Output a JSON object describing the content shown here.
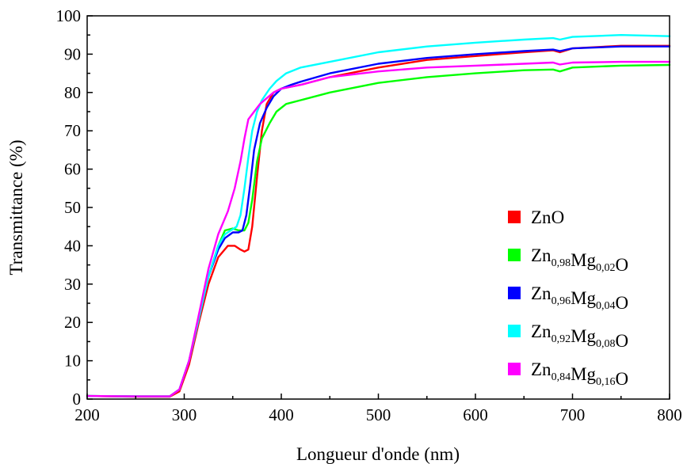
{
  "chart_data": {
    "type": "line",
    "xlabel": "Longueur d'onde (nm)",
    "ylabel": "Transmittance (%)",
    "xlim": [
      200,
      800
    ],
    "ylim": [
      0,
      100
    ],
    "x_ticks": [
      "200",
      "300",
      "400",
      "500",
      "600",
      "700",
      "800"
    ],
    "y_ticks": [
      "0",
      "10",
      "20",
      "30",
      "40",
      "50",
      "60",
      "70",
      "80",
      "90",
      "100"
    ],
    "grid": false,
    "legend_position": "right",
    "series": [
      {
        "name": "ZnO",
        "label_parts": [
          [
            "Zn",
            ""
          ],
          [
            "O",
            ""
          ]
        ],
        "color": "#ff0000",
        "points": [
          [
            200,
            0.8
          ],
          [
            250,
            0.6
          ],
          [
            285,
            0.6
          ],
          [
            295,
            2
          ],
          [
            305,
            9
          ],
          [
            315,
            20
          ],
          [
            325,
            30
          ],
          [
            335,
            37
          ],
          [
            345,
            40
          ],
          [
            352,
            40
          ],
          [
            358,
            39
          ],
          [
            362,
            38.5
          ],
          [
            366,
            39
          ],
          [
            370,
            45
          ],
          [
            375,
            58
          ],
          [
            380,
            70
          ],
          [
            385,
            77
          ],
          [
            392,
            80
          ],
          [
            400,
            81
          ],
          [
            410,
            81.5
          ],
          [
            420,
            82
          ],
          [
            450,
            84
          ],
          [
            500,
            86.5
          ],
          [
            550,
            88.5
          ],
          [
            600,
            89.5
          ],
          [
            650,
            90.5
          ],
          [
            680,
            91
          ],
          [
            687,
            90.5
          ],
          [
            700,
            91.5
          ],
          [
            750,
            92.2
          ],
          [
            800,
            92.2
          ]
        ]
      },
      {
        "name": "Zn0,98Mg0,02O",
        "label_parts": [
          [
            "Zn",
            "0,98"
          ],
          [
            "Mg",
            "0,02"
          ],
          [
            "O",
            ""
          ]
        ],
        "color": "#00ff00",
        "points": [
          [
            200,
            0.8
          ],
          [
            250,
            0.7
          ],
          [
            285,
            0.7
          ],
          [
            295,
            2.5
          ],
          [
            305,
            10
          ],
          [
            315,
            21
          ],
          [
            325,
            32
          ],
          [
            335,
            40
          ],
          [
            342,
            44
          ],
          [
            350,
            44.5
          ],
          [
            356,
            44
          ],
          [
            362,
            44
          ],
          [
            366,
            46
          ],
          [
            370,
            52
          ],
          [
            375,
            62
          ],
          [
            380,
            68
          ],
          [
            388,
            72
          ],
          [
            395,
            75
          ],
          [
            405,
            77
          ],
          [
            420,
            78
          ],
          [
            450,
            80
          ],
          [
            500,
            82.5
          ],
          [
            550,
            84
          ],
          [
            600,
            85
          ],
          [
            650,
            85.8
          ],
          [
            680,
            86
          ],
          [
            687,
            85.5
          ],
          [
            700,
            86.5
          ],
          [
            750,
            87
          ],
          [
            800,
            87.2
          ]
        ]
      },
      {
        "name": "Zn0,96Mg0,04O",
        "label_parts": [
          [
            "Zn",
            "0,96"
          ],
          [
            "Mg",
            "0,04"
          ],
          [
            "O",
            ""
          ]
        ],
        "color": "#0000ff",
        "points": [
          [
            200,
            0.8
          ],
          [
            250,
            0.7
          ],
          [
            285,
            0.7
          ],
          [
            295,
            2.5
          ],
          [
            305,
            10
          ],
          [
            315,
            21
          ],
          [
            325,
            32
          ],
          [
            335,
            39
          ],
          [
            342,
            42
          ],
          [
            350,
            43.5
          ],
          [
            356,
            43.5
          ],
          [
            360,
            44
          ],
          [
            364,
            48
          ],
          [
            368,
            56
          ],
          [
            372,
            65
          ],
          [
            378,
            72
          ],
          [
            385,
            76
          ],
          [
            392,
            79
          ],
          [
            400,
            81
          ],
          [
            410,
            82
          ],
          [
            420,
            82.8
          ],
          [
            450,
            85
          ],
          [
            500,
            87.5
          ],
          [
            550,
            89
          ],
          [
            600,
            90
          ],
          [
            650,
            90.8
          ],
          [
            680,
            91.2
          ],
          [
            687,
            90.8
          ],
          [
            700,
            91.5
          ],
          [
            750,
            92
          ],
          [
            800,
            92
          ]
        ]
      },
      {
        "name": "Zn0,92Mg0,08O",
        "label_parts": [
          [
            "Zn",
            "0,92"
          ],
          [
            "Mg",
            "0,08"
          ],
          [
            "O",
            ""
          ]
        ],
        "color": "#00ffff",
        "points": [
          [
            200,
            0.8
          ],
          [
            250,
            0.7
          ],
          [
            285,
            0.7
          ],
          [
            295,
            2.5
          ],
          [
            305,
            10
          ],
          [
            315,
            21
          ],
          [
            325,
            32
          ],
          [
            335,
            40
          ],
          [
            342,
            43
          ],
          [
            348,
            44
          ],
          [
            354,
            45
          ],
          [
            358,
            48
          ],
          [
            362,
            55
          ],
          [
            366,
            63
          ],
          [
            370,
            70
          ],
          [
            375,
            75
          ],
          [
            380,
            78
          ],
          [
            388,
            81
          ],
          [
            395,
            83
          ],
          [
            405,
            85
          ],
          [
            420,
            86.5
          ],
          [
            450,
            88
          ],
          [
            500,
            90.5
          ],
          [
            550,
            92
          ],
          [
            600,
            93
          ],
          [
            650,
            93.8
          ],
          [
            680,
            94.2
          ],
          [
            687,
            93.8
          ],
          [
            700,
            94.5
          ],
          [
            750,
            95
          ],
          [
            800,
            94.7
          ]
        ]
      },
      {
        "name": "Zn0,84Mg0,16O",
        "label_parts": [
          [
            "Zn",
            "0,84"
          ],
          [
            "Mg",
            "0,16"
          ],
          [
            "O",
            ""
          ]
        ],
        "color": "#ff00ff",
        "points": [
          [
            200,
            0.8
          ],
          [
            250,
            0.7
          ],
          [
            285,
            0.7
          ],
          [
            295,
            2.5
          ],
          [
            305,
            10
          ],
          [
            315,
            22
          ],
          [
            325,
            34
          ],
          [
            335,
            43
          ],
          [
            345,
            49
          ],
          [
            352,
            55
          ],
          [
            358,
            62
          ],
          [
            362,
            68
          ],
          [
            366,
            73
          ],
          [
            372,
            75
          ],
          [
            378,
            77
          ],
          [
            385,
            78.5
          ],
          [
            392,
            80
          ],
          [
            400,
            81
          ],
          [
            410,
            81.5
          ],
          [
            420,
            82
          ],
          [
            450,
            84
          ],
          [
            500,
            85.5
          ],
          [
            550,
            86.5
          ],
          [
            600,
            87
          ],
          [
            650,
            87.5
          ],
          [
            680,
            87.8
          ],
          [
            687,
            87.3
          ],
          [
            700,
            87.8
          ],
          [
            750,
            88
          ],
          [
            800,
            88
          ]
        ]
      }
    ]
  }
}
